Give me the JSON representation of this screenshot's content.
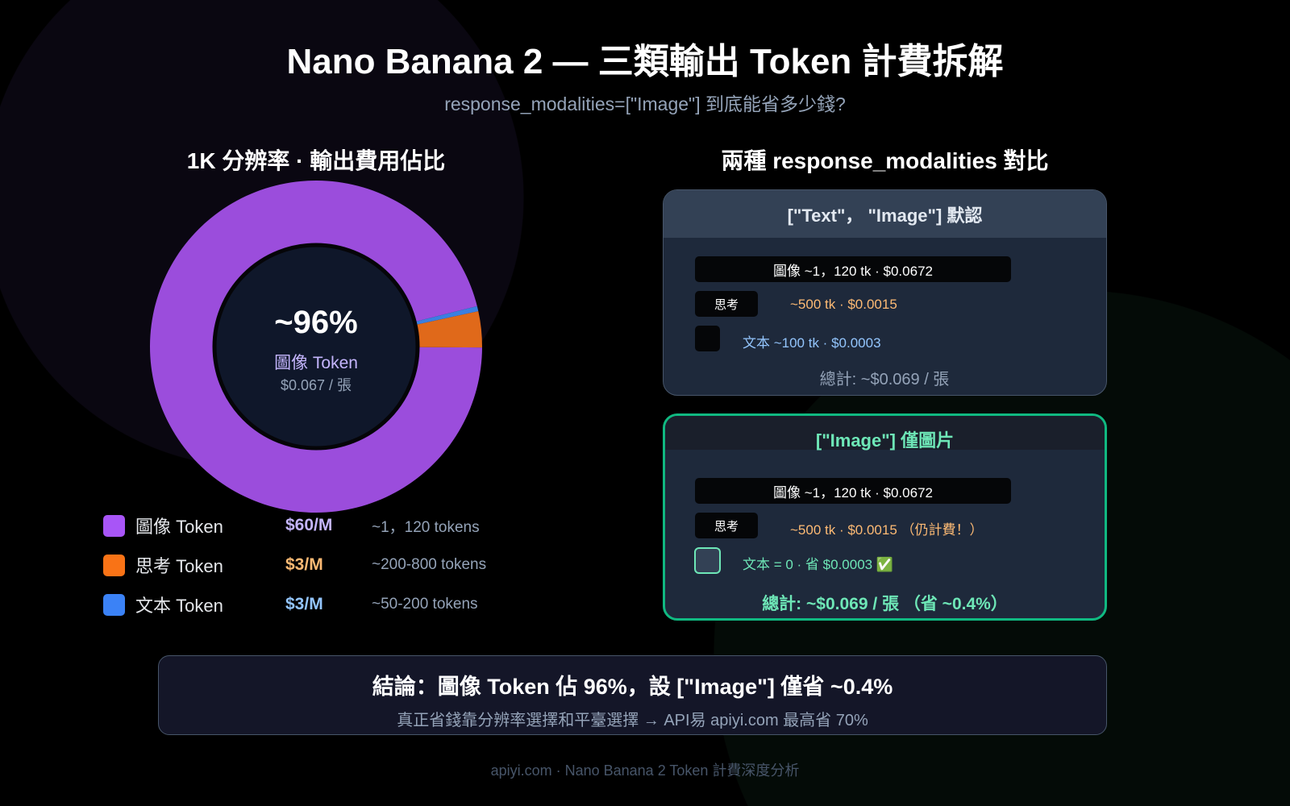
{
  "header": {
    "title": "Nano Banana 2 — 三類輸出 Token 計費拆解",
    "subtitle": "response_modalities=[\"Image\"] 到底能省多少錢?"
  },
  "left": {
    "heading": "1K 分辨率 · 輸出費用佔比",
    "center_value": "~96%",
    "center_label": "圖像 Token",
    "center_sub": "$0.067 / 張"
  },
  "chart_data": {
    "type": "pie",
    "donut": true,
    "categories": [
      "圖像 Token",
      "思考 Token",
      "文本 Token"
    ],
    "values": [
      96,
      3.5,
      0.5
    ],
    "colors": [
      "#9b4ddc",
      "#e0691a",
      "#3b7fe0"
    ],
    "legend": [
      {
        "label": "圖像 Token",
        "price": "$60/M",
        "tokens": "~1，120 tokens",
        "color": "#a855f7",
        "price_color": "#c4b5fd"
      },
      {
        "label": "思考 Token",
        "price": "$3/M",
        "tokens": "~200-800 tokens",
        "color": "#f97316",
        "price_color": "#fdba74"
      },
      {
        "label": "文本 Token",
        "price": "$3/M",
        "tokens": "~50-200 tokens",
        "color": "#3b82f6",
        "price_color": "#93c5fd"
      }
    ],
    "legend_position": "bottom"
  },
  "right": {
    "heading": "兩種 response_modalities 對比",
    "card_default": {
      "title": "[\"Text\"， \"Image\"] 默認",
      "image_row": "圖像 ~1，120 tk · $0.0672",
      "think_label": "思考",
      "think_row": "~500 tk · $0.0015",
      "text_row": "文本 ~100 tk · $0.0003",
      "total": "總計: ~$0.069 / 張"
    },
    "card_image": {
      "title": "[\"Image\"] 僅圖片",
      "image_row": "圖像 ~1，120 tk · $0.0672",
      "think_label": "思考",
      "think_row": "~500 tk · $0.0015 （仍計費！）",
      "text_row": "文本 = 0 · 省 $0.0003 ✅",
      "total": "總計: ~$0.069 / 張 （省 ~0.4%）"
    }
  },
  "conclusion": {
    "title": "結論：圖像 Token 佔 96%，設 [\"Image\"] 僅省 ~0.4%",
    "sub": "真正省錢靠分辨率選擇和平臺選擇 → API易 apiyi.com 最高省 70%"
  },
  "footer": "apiyi.com · Nano Banana 2 Token 計費深度分析"
}
